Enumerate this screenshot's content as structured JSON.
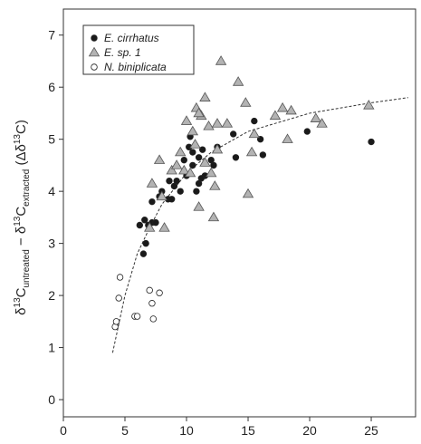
{
  "chart_data": {
    "type": "scatter",
    "ylabel_parts": [
      "δ",
      "13",
      "C",
      "untreated",
      " − δ",
      "13",
      "C",
      "extracted",
      " (Δδ",
      "13",
      "C)"
    ],
    "xlim": [
      0,
      28.6
    ],
    "ylim": [
      -0.33,
      7.5
    ],
    "xticks": [
      0,
      5,
      10,
      15,
      20,
      25
    ],
    "yticks": [
      0,
      1,
      2,
      3,
      4,
      5,
      6,
      7
    ],
    "legend": "top-left",
    "series": [
      {
        "name": "E. cirrhatus",
        "marker": "circle",
        "color": "#1a1a1a",
        "x": [
          6.2,
          6.6,
          6.5,
          6.7,
          6.9,
          7.2,
          7.2,
          7.5,
          7.8,
          8.0,
          8.5,
          8.6,
          8.8,
          9.0,
          9.2,
          9.5,
          9.8,
          10.0,
          10.2,
          10.3,
          10.5,
          10.8,
          11.0,
          11.0,
          11.3,
          11.5,
          12.0,
          12.2,
          12.5,
          13.8,
          14.0,
          16.0,
          16.2,
          15.5,
          19.8,
          25.0,
          10.5,
          11.2
        ],
        "y": [
          3.35,
          3.45,
          2.8,
          3.0,
          3.35,
          3.4,
          3.8,
          3.4,
          3.9,
          4.0,
          3.85,
          4.2,
          3.85,
          4.1,
          4.2,
          4.0,
          4.6,
          4.3,
          4.85,
          5.05,
          4.5,
          4.0,
          4.15,
          4.65,
          4.8,
          4.3,
          4.6,
          4.5,
          4.85,
          5.1,
          4.65,
          5.0,
          4.7,
          5.35,
          5.15,
          4.95,
          4.75,
          4.25
        ]
      },
      {
        "name": "E. sp. 1",
        "marker": "triangle",
        "color": "#b3b3b3",
        "x": [
          7.0,
          7.2,
          7.8,
          8.2,
          8.0,
          8.8,
          9.2,
          9.5,
          9.8,
          10.0,
          10.3,
          10.5,
          10.8,
          11.0,
          11.2,
          11.5,
          11.5,
          11.8,
          12.0,
          12.2,
          12.3,
          12.5,
          12.5,
          12.8,
          13.3,
          14.2,
          14.8,
          15.0,
          15.3,
          15.5,
          17.2,
          17.8,
          18.2,
          18.5,
          20.5,
          21.0,
          24.8,
          11.0,
          10.7
        ],
        "y": [
          3.3,
          4.15,
          4.6,
          3.3,
          3.9,
          4.4,
          4.5,
          4.75,
          4.4,
          5.35,
          4.35,
          5.15,
          5.6,
          3.7,
          5.45,
          5.8,
          4.55,
          5.25,
          4.35,
          3.5,
          4.1,
          5.3,
          4.8,
          6.5,
          5.3,
          6.1,
          5.7,
          3.95,
          4.75,
          5.1,
          5.45,
          5.6,
          5.0,
          5.55,
          5.4,
          5.3,
          5.65,
          5.5,
          4.9
        ]
      },
      {
        "name": "N. biniplicata",
        "marker": "open-circle",
        "color": "#ffffff",
        "x": [
          4.2,
          4.3,
          4.5,
          4.6,
          5.8,
          6.0,
          7.0,
          7.2,
          7.3,
          7.8
        ],
        "y": [
          1.4,
          1.5,
          1.95,
          2.35,
          1.6,
          1.6,
          2.1,
          1.85,
          1.55,
          2.05
        ]
      }
    ],
    "fit": {
      "x": [
        4,
        5,
        6,
        7,
        8,
        10,
        12,
        15,
        20,
        25,
        28
      ],
      "y": [
        0.9,
        2.0,
        2.8,
        3.3,
        3.75,
        4.35,
        4.75,
        5.15,
        5.5,
        5.7,
        5.8
      ]
    }
  }
}
